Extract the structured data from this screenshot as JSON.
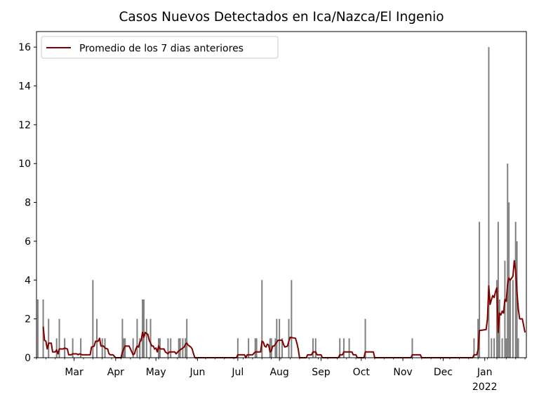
{
  "chart_data": {
    "type": "bar",
    "title": "Casos Nuevos Detectados en Ica/Nazca/El Ingenio",
    "xlabel": "",
    "ylabel": "",
    "x_start": "2021-02-01",
    "x_end": "2022-02-01",
    "ylim": [
      0,
      16.8
    ],
    "y_ticks": [
      0,
      2,
      4,
      6,
      8,
      10,
      12,
      14,
      16
    ],
    "x_ticks": [
      {
        "date": "2021-03-01",
        "label": "Mar"
      },
      {
        "date": "2021-04-01",
        "label": "Apr"
      },
      {
        "date": "2021-05-01",
        "label": "May"
      },
      {
        "date": "2021-06-01",
        "label": "Jun"
      },
      {
        "date": "2021-07-01",
        "label": "Jul"
      },
      {
        "date": "2021-08-01",
        "label": "Aug"
      },
      {
        "date": "2021-09-01",
        "label": "Sep"
      },
      {
        "date": "2021-10-01",
        "label": "Oct"
      },
      {
        "date": "2021-11-01",
        "label": "Nov"
      },
      {
        "date": "2021-12-01",
        "label": "Dec"
      },
      {
        "date": "2022-01-01",
        "label": "Jan",
        "sublabel": "2022"
      }
    ],
    "legend": {
      "label": "Promedio de los 7 dias anteriores",
      "location": "upper left"
    },
    "bar_color": "#808080",
    "line_color": "#800000",
    "bars": [
      [
        "2021-02-02",
        3
      ],
      [
        "2021-02-06",
        3
      ],
      [
        "2021-02-10",
        2
      ],
      [
        "2021-02-16",
        1
      ],
      [
        "2021-02-18",
        2
      ],
      [
        "2021-02-22",
        1
      ],
      [
        "2021-02-28",
        1
      ],
      [
        "2021-03-06",
        1
      ],
      [
        "2021-03-15",
        4
      ],
      [
        "2021-03-18",
        2
      ],
      [
        "2021-03-22",
        1
      ],
      [
        "2021-03-24",
        1
      ],
      [
        "2021-04-06",
        2
      ],
      [
        "2021-04-07",
        1
      ],
      [
        "2021-04-08",
        1
      ],
      [
        "2021-04-14",
        1
      ],
      [
        "2021-04-17",
        2
      ],
      [
        "2021-04-19",
        1
      ],
      [
        "2021-04-21",
        3
      ],
      [
        "2021-04-22",
        3
      ],
      [
        "2021-04-24",
        2
      ],
      [
        "2021-04-27",
        2
      ],
      [
        "2021-05-03",
        1
      ],
      [
        "2021-05-04",
        1
      ],
      [
        "2021-05-10",
        1
      ],
      [
        "2021-05-12",
        1
      ],
      [
        "2021-05-18",
        1
      ],
      [
        "2021-05-19",
        1
      ],
      [
        "2021-05-21",
        1
      ],
      [
        "2021-05-23",
        1
      ],
      [
        "2021-05-24",
        2
      ],
      [
        "2021-07-01",
        1
      ],
      [
        "2021-07-09",
        1
      ],
      [
        "2021-07-14",
        1
      ],
      [
        "2021-07-15",
        1
      ],
      [
        "2021-07-19",
        4
      ],
      [
        "2021-07-25",
        1
      ],
      [
        "2021-07-26",
        1
      ],
      [
        "2021-07-29",
        1
      ],
      [
        "2021-07-30",
        2
      ],
      [
        "2021-08-01",
        2
      ],
      [
        "2021-08-03",
        1
      ],
      [
        "2021-08-08",
        2
      ],
      [
        "2021-08-10",
        4
      ],
      [
        "2021-08-26",
        1
      ],
      [
        "2021-08-28",
        1
      ],
      [
        "2021-09-15",
        1
      ],
      [
        "2021-09-18",
        1
      ],
      [
        "2021-09-22",
        1
      ],
      [
        "2021-10-04",
        2
      ],
      [
        "2021-11-08",
        1
      ],
      [
        "2021-12-24",
        1
      ],
      [
        "2021-12-27",
        2
      ],
      [
        "2021-12-28",
        7
      ],
      [
        "2022-01-04",
        16
      ],
      [
        "2022-01-06",
        1
      ],
      [
        "2022-01-08",
        1
      ],
      [
        "2022-01-10",
        4
      ],
      [
        "2022-01-11",
        7
      ],
      [
        "2022-01-12",
        3
      ],
      [
        "2022-01-14",
        1
      ],
      [
        "2022-01-16",
        5
      ],
      [
        "2022-01-17",
        1
      ],
      [
        "2022-01-18",
        10
      ],
      [
        "2022-01-19",
        8
      ],
      [
        "2022-01-20",
        4
      ],
      [
        "2022-01-22",
        4
      ],
      [
        "2022-01-24",
        7
      ],
      [
        "2022-01-25",
        6
      ],
      [
        "2022-01-26",
        1
      ]
    ],
    "rolling_avg": [
      [
        "2021-02-06",
        1.6
      ],
      [
        "2021-02-07",
        0.9
      ],
      [
        "2021-02-08",
        0.85
      ],
      [
        "2021-02-09",
        0.45
      ],
      [
        "2021-02-10",
        0.75
      ],
      [
        "2021-02-12",
        0.75
      ],
      [
        "2021-02-13",
        0.3
      ],
      [
        "2021-02-15",
        0.3
      ],
      [
        "2021-02-16",
        0.4
      ],
      [
        "2021-02-17",
        0.2
      ],
      [
        "2021-02-18",
        0.45
      ],
      [
        "2021-02-21",
        0.45
      ],
      [
        "2021-02-22",
        0.5
      ],
      [
        "2021-02-24",
        0.45
      ],
      [
        "2021-02-25",
        0.15
      ],
      [
        "2021-02-27",
        0.15
      ],
      [
        "2021-02-28",
        0.2
      ],
      [
        "2021-03-03",
        0.2
      ],
      [
        "2021-03-04",
        0.15
      ],
      [
        "2021-03-05",
        0.2
      ],
      [
        "2021-03-07",
        0.15
      ],
      [
        "2021-03-13",
        0.15
      ],
      [
        "2021-03-14",
        0.55
      ],
      [
        "2021-03-16",
        0.6
      ],
      [
        "2021-03-17",
        0.85
      ],
      [
        "2021-03-19",
        0.85
      ],
      [
        "2021-03-20",
        1.0
      ],
      [
        "2021-03-21",
        0.6
      ],
      [
        "2021-03-23",
        0.6
      ],
      [
        "2021-03-24",
        0.5
      ],
      [
        "2021-03-26",
        0.45
      ],
      [
        "2021-03-27",
        0.2
      ],
      [
        "2021-03-28",
        0.15
      ],
      [
        "2021-03-30",
        0.15
      ],
      [
        "2021-04-01",
        0.0
      ],
      [
        "2021-04-05",
        0.0
      ],
      [
        "2021-04-06",
        0.3
      ],
      [
        "2021-04-08",
        0.6
      ],
      [
        "2021-04-11",
        0.6
      ],
      [
        "2021-04-13",
        0.3
      ],
      [
        "2021-04-14",
        0.15
      ],
      [
        "2021-04-15",
        0.2
      ],
      [
        "2021-04-16",
        0.45
      ],
      [
        "2021-04-17",
        0.6
      ],
      [
        "2021-04-18",
        0.55
      ],
      [
        "2021-04-19",
        0.8
      ],
      [
        "2021-04-20",
        0.9
      ],
      [
        "2021-04-21",
        1.3
      ],
      [
        "2021-04-22",
        1.05
      ],
      [
        "2021-04-23",
        1.3
      ],
      [
        "2021-04-25",
        1.2
      ],
      [
        "2021-04-26",
        0.9
      ],
      [
        "2021-04-28",
        0.6
      ],
      [
        "2021-04-29",
        0.6
      ],
      [
        "2021-04-30",
        0.45
      ],
      [
        "2021-05-01",
        0.5
      ],
      [
        "2021-05-02",
        0.3
      ],
      [
        "2021-05-03",
        0.6
      ],
      [
        "2021-05-04",
        0.45
      ],
      [
        "2021-05-07",
        0.45
      ],
      [
        "2021-05-08",
        0.3
      ],
      [
        "2021-05-10",
        0.2
      ],
      [
        "2021-05-11",
        0.3
      ],
      [
        "2021-05-15",
        0.3
      ],
      [
        "2021-05-16",
        0.2
      ],
      [
        "2021-05-18",
        0.35
      ],
      [
        "2021-05-20",
        0.45
      ],
      [
        "2021-05-22",
        0.55
      ],
      [
        "2021-05-23",
        0.7
      ],
      [
        "2021-05-24",
        0.75
      ],
      [
        "2021-05-25",
        0.65
      ],
      [
        "2021-05-27",
        0.55
      ],
      [
        "2021-05-28",
        0.45
      ],
      [
        "2021-05-29",
        0.2
      ],
      [
        "2021-05-30",
        0.0
      ],
      [
        "2021-06-30",
        0.0
      ],
      [
        "2021-07-01",
        0.15
      ],
      [
        "2021-07-06",
        0.15
      ],
      [
        "2021-07-07",
        0.0
      ],
      [
        "2021-07-08",
        0.15
      ],
      [
        "2021-07-12",
        0.15
      ],
      [
        "2021-07-14",
        0.3
      ],
      [
        "2021-07-18",
        0.3
      ],
      [
        "2021-07-19",
        0.85
      ],
      [
        "2021-07-20",
        0.8
      ],
      [
        "2021-07-21",
        0.6
      ],
      [
        "2021-07-22",
        0.55
      ],
      [
        "2021-07-23",
        0.7
      ],
      [
        "2021-07-24",
        0.65
      ],
      [
        "2021-07-25",
        0.3
      ],
      [
        "2021-07-26",
        0.35
      ],
      [
        "2021-07-27",
        0.6
      ],
      [
        "2021-07-28",
        0.6
      ],
      [
        "2021-07-30",
        0.8
      ],
      [
        "2021-07-31",
        0.9
      ],
      [
        "2021-08-03",
        0.9
      ],
      [
        "2021-08-04",
        0.7
      ],
      [
        "2021-08-05",
        0.55
      ],
      [
        "2021-08-07",
        0.6
      ],
      [
        "2021-08-08",
        0.85
      ],
      [
        "2021-08-09",
        1.05
      ],
      [
        "2021-08-13",
        1.0
      ],
      [
        "2021-08-14",
        0.75
      ],
      [
        "2021-08-15",
        0.45
      ],
      [
        "2021-08-16",
        0.0
      ],
      [
        "2021-08-21",
        0.0
      ],
      [
        "2021-08-22",
        0.15
      ],
      [
        "2021-08-25",
        0.15
      ],
      [
        "2021-08-26",
        0.3
      ],
      [
        "2021-08-28",
        0.3
      ],
      [
        "2021-08-29",
        0.15
      ],
      [
        "2021-09-01",
        0.15
      ],
      [
        "2021-09-02",
        0.0
      ],
      [
        "2021-09-14",
        0.0
      ],
      [
        "2021-09-15",
        0.15
      ],
      [
        "2021-09-17",
        0.15
      ],
      [
        "2021-09-18",
        0.3
      ],
      [
        "2021-09-24",
        0.3
      ],
      [
        "2021-09-25",
        0.15
      ],
      [
        "2021-09-27",
        0.15
      ],
      [
        "2021-09-28",
        0.0
      ],
      [
        "2021-10-03",
        0.0
      ],
      [
        "2021-10-04",
        0.3
      ],
      [
        "2021-10-10",
        0.3
      ],
      [
        "2021-10-11",
        0.0
      ],
      [
        "2021-11-07",
        0.0
      ],
      [
        "2021-11-08",
        0.15
      ],
      [
        "2021-11-14",
        0.15
      ],
      [
        "2021-11-15",
        0.0
      ],
      [
        "2021-12-23",
        0.0
      ],
      [
        "2021-12-24",
        0.15
      ],
      [
        "2021-12-26",
        0.15
      ],
      [
        "2021-12-27",
        0.4
      ],
      [
        "2021-12-28",
        1.4
      ],
      [
        "2022-01-02",
        1.45
      ],
      [
        "2022-01-03",
        2.0
      ],
      [
        "2022-01-04",
        3.7
      ],
      [
        "2022-01-05",
        2.75
      ],
      [
        "2022-01-06",
        3.0
      ],
      [
        "2022-01-07",
        3.2
      ],
      [
        "2022-01-08",
        3.1
      ],
      [
        "2022-01-09",
        3.4
      ],
      [
        "2022-01-10",
        3.6
      ],
      [
        "2022-01-11",
        1.3
      ],
      [
        "2022-01-12",
        2.3
      ],
      [
        "2022-01-13",
        2.2
      ],
      [
        "2022-01-14",
        2.4
      ],
      [
        "2022-01-15",
        2.3
      ],
      [
        "2022-01-16",
        3.0
      ],
      [
        "2022-01-17",
        2.9
      ],
      [
        "2022-01-18",
        3.8
      ],
      [
        "2022-01-19",
        4.1
      ],
      [
        "2022-01-20",
        4.0
      ],
      [
        "2022-01-21",
        4.1
      ],
      [
        "2022-01-22",
        4.2
      ],
      [
        "2022-01-23",
        5.0
      ],
      [
        "2022-01-24",
        4.5
      ],
      [
        "2022-01-25",
        3.4
      ],
      [
        "2022-01-26",
        2.5
      ],
      [
        "2022-01-27",
        2.0
      ],
      [
        "2022-01-29",
        2.0
      ],
      [
        "2022-01-31",
        1.3
      ]
    ]
  }
}
